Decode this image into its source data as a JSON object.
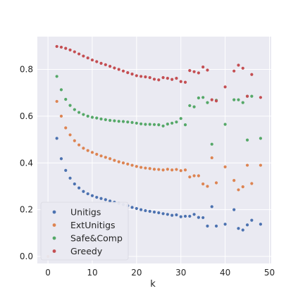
{
  "chart_data": {
    "type": "scatter",
    "title": "",
    "xlabel": "k",
    "ylabel": "",
    "xlim": [
      -2.4,
      50.4
    ],
    "ylim": [
      -0.03,
      0.94
    ],
    "xticks": [
      0,
      10,
      20,
      30,
      40,
      50
    ],
    "yticks": [
      0.0,
      0.2,
      0.4,
      0.6,
      0.8
    ],
    "ytick_labels": [
      "0.0",
      "0.2",
      "0.4",
      "0.6",
      "0.8"
    ],
    "grid": true,
    "legend_position": "lower-left",
    "series": [
      {
        "name": "Unitigs",
        "color": "#4c72b0",
        "points": [
          [
            2,
            0.505
          ],
          [
            3,
            0.418
          ],
          [
            4,
            0.368
          ],
          [
            5,
            0.335
          ],
          [
            6,
            0.31
          ],
          [
            7,
            0.293
          ],
          [
            8,
            0.278
          ],
          [
            9,
            0.268
          ],
          [
            10,
            0.26
          ],
          [
            11,
            0.253
          ],
          [
            12,
            0.248
          ],
          [
            13,
            0.243
          ],
          [
            14,
            0.237
          ],
          [
            15,
            0.232
          ],
          [
            16,
            0.227
          ],
          [
            17,
            0.222
          ],
          [
            18,
            0.217
          ],
          [
            19,
            0.21
          ],
          [
            20,
            0.205
          ],
          [
            21,
            0.2
          ],
          [
            22,
            0.196
          ],
          [
            23,
            0.193
          ],
          [
            24,
            0.19
          ],
          [
            25,
            0.187
          ],
          [
            26,
            0.183
          ],
          [
            27,
            0.18
          ],
          [
            28,
            0.176
          ],
          [
            29,
            0.178
          ],
          [
            30,
            0.17
          ],
          [
            31,
            0.172
          ],
          [
            32,
            0.172
          ],
          [
            33,
            0.18
          ],
          [
            34,
            0.167
          ],
          [
            35,
            0.166
          ],
          [
            36,
            0.13
          ],
          [
            37,
            0.213
          ],
          [
            38,
            0.13
          ],
          [
            40,
            0.138
          ],
          [
            42,
            0.2
          ],
          [
            43,
            0.12
          ],
          [
            44,
            0.113
          ],
          [
            45,
            0.135
          ],
          [
            46,
            0.155
          ],
          [
            48,
            0.138
          ]
        ]
      },
      {
        "name": "ExtUnitigs",
        "color": "#dd8452",
        "points": [
          [
            0,
            0.0
          ],
          [
            2,
            0.663
          ],
          [
            3,
            0.6
          ],
          [
            4,
            0.55
          ],
          [
            5,
            0.52
          ],
          [
            6,
            0.495
          ],
          [
            7,
            0.477
          ],
          [
            8,
            0.463
          ],
          [
            9,
            0.453
          ],
          [
            10,
            0.445
          ],
          [
            11,
            0.437
          ],
          [
            12,
            0.43
          ],
          [
            13,
            0.424
          ],
          [
            14,
            0.418
          ],
          [
            15,
            0.411
          ],
          [
            16,
            0.405
          ],
          [
            17,
            0.4
          ],
          [
            18,
            0.395
          ],
          [
            19,
            0.39
          ],
          [
            20,
            0.385
          ],
          [
            21,
            0.381
          ],
          [
            22,
            0.378
          ],
          [
            23,
            0.376
          ],
          [
            24,
            0.373
          ],
          [
            25,
            0.372
          ],
          [
            26,
            0.37
          ],
          [
            27,
            0.373
          ],
          [
            28,
            0.37
          ],
          [
            29,
            0.372
          ],
          [
            30,
            0.367
          ],
          [
            31,
            0.37
          ],
          [
            32,
            0.34
          ],
          [
            33,
            0.345
          ],
          [
            34,
            0.345
          ],
          [
            35,
            0.31
          ],
          [
            36,
            0.3
          ],
          [
            37,
            0.422
          ],
          [
            38,
            0.315
          ],
          [
            40,
            0.383
          ],
          [
            42,
            0.325
          ],
          [
            43,
            0.285
          ],
          [
            44,
            0.298
          ],
          [
            45,
            0.39
          ],
          [
            46,
            0.312
          ],
          [
            48,
            0.39
          ]
        ]
      },
      {
        "name": "Safe&Comp",
        "color": "#55a868",
        "points": [
          [
            2,
            0.77
          ],
          [
            3,
            0.713
          ],
          [
            4,
            0.672
          ],
          [
            5,
            0.646
          ],
          [
            6,
            0.628
          ],
          [
            7,
            0.616
          ],
          [
            8,
            0.607
          ],
          [
            9,
            0.6
          ],
          [
            10,
            0.595
          ],
          [
            11,
            0.592
          ],
          [
            12,
            0.588
          ],
          [
            13,
            0.585
          ],
          [
            14,
            0.582
          ],
          [
            15,
            0.58
          ],
          [
            16,
            0.578
          ],
          [
            17,
            0.577
          ],
          [
            18,
            0.575
          ],
          [
            19,
            0.573
          ],
          [
            20,
            0.57
          ],
          [
            21,
            0.567
          ],
          [
            22,
            0.565
          ],
          [
            23,
            0.565
          ],
          [
            24,
            0.564
          ],
          [
            25,
            0.563
          ],
          [
            26,
            0.558
          ],
          [
            27,
            0.566
          ],
          [
            28,
            0.57
          ],
          [
            29,
            0.575
          ],
          [
            30,
            0.59
          ],
          [
            31,
            0.563
          ],
          [
            32,
            0.645
          ],
          [
            33,
            0.64
          ],
          [
            34,
            0.678
          ],
          [
            35,
            0.68
          ],
          [
            36,
            0.658
          ],
          [
            37,
            0.48
          ],
          [
            38,
            0.668
          ],
          [
            40,
            0.565
          ],
          [
            42,
            0.67
          ],
          [
            43,
            0.67
          ],
          [
            44,
            0.658
          ],
          [
            45,
            0.498
          ],
          [
            45,
            0.685
          ],
          [
            46,
            0.685
          ],
          [
            48,
            0.505
          ]
        ]
      },
      {
        "name": "Greedy",
        "color": "#c44e52",
        "points": [
          [
            2,
            0.898
          ],
          [
            3,
            0.895
          ],
          [
            4,
            0.89
          ],
          [
            5,
            0.883
          ],
          [
            6,
            0.875
          ],
          [
            7,
            0.866
          ],
          [
            8,
            0.857
          ],
          [
            9,
            0.849
          ],
          [
            10,
            0.84
          ],
          [
            11,
            0.833
          ],
          [
            12,
            0.826
          ],
          [
            13,
            0.82
          ],
          [
            14,
            0.813
          ],
          [
            15,
            0.806
          ],
          [
            16,
            0.8
          ],
          [
            17,
            0.793
          ],
          [
            18,
            0.786
          ],
          [
            19,
            0.78
          ],
          [
            20,
            0.773
          ],
          [
            21,
            0.77
          ],
          [
            22,
            0.768
          ],
          [
            23,
            0.765
          ],
          [
            24,
            0.758
          ],
          [
            25,
            0.755
          ],
          [
            26,
            0.765
          ],
          [
            27,
            0.762
          ],
          [
            28,
            0.757
          ],
          [
            29,
            0.762
          ],
          [
            30,
            0.748
          ],
          [
            31,
            0.745
          ],
          [
            32,
            0.795
          ],
          [
            33,
            0.79
          ],
          [
            34,
            0.785
          ],
          [
            35,
            0.81
          ],
          [
            36,
            0.797
          ],
          [
            37,
            0.67
          ],
          [
            38,
            0.665
          ],
          [
            40,
            0.725
          ],
          [
            42,
            0.793
          ],
          [
            43,
            0.818
          ],
          [
            44,
            0.805
          ],
          [
            45,
            0.685
          ],
          [
            46,
            0.778
          ],
          [
            48,
            0.68
          ]
        ]
      }
    ]
  }
}
